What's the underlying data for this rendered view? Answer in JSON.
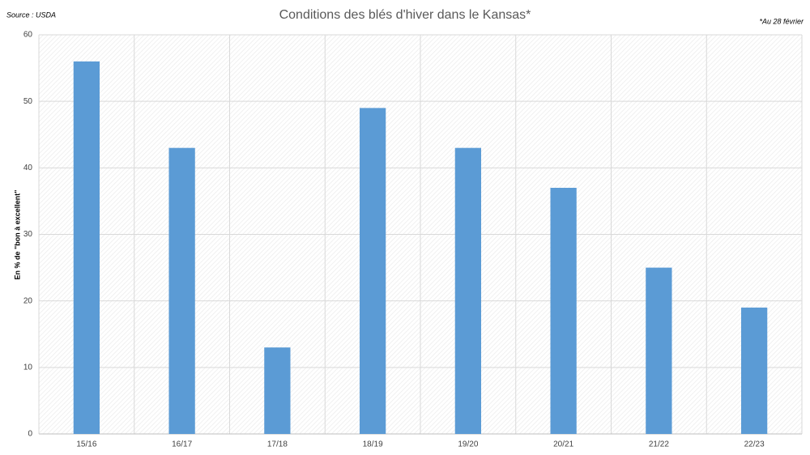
{
  "chart_data": {
    "type": "bar",
    "title": "Conditions des blés d'hiver dans le Kansas*",
    "source": "Source : USDA",
    "note": "*Au 28 février",
    "y_label": "En % de \"bon à excellent\"",
    "categories": [
      "15/16",
      "16/17",
      "17/18",
      "18/19",
      "19/20",
      "20/21",
      "21/22",
      "22/23"
    ],
    "values": [
      56,
      43,
      13,
      49,
      43,
      37,
      25,
      19
    ],
    "color": "#5b9bd5",
    "ylim": [
      0,
      60
    ],
    "yticks": [
      0,
      10,
      20,
      30,
      40,
      50,
      60
    ],
    "grid": true
  }
}
